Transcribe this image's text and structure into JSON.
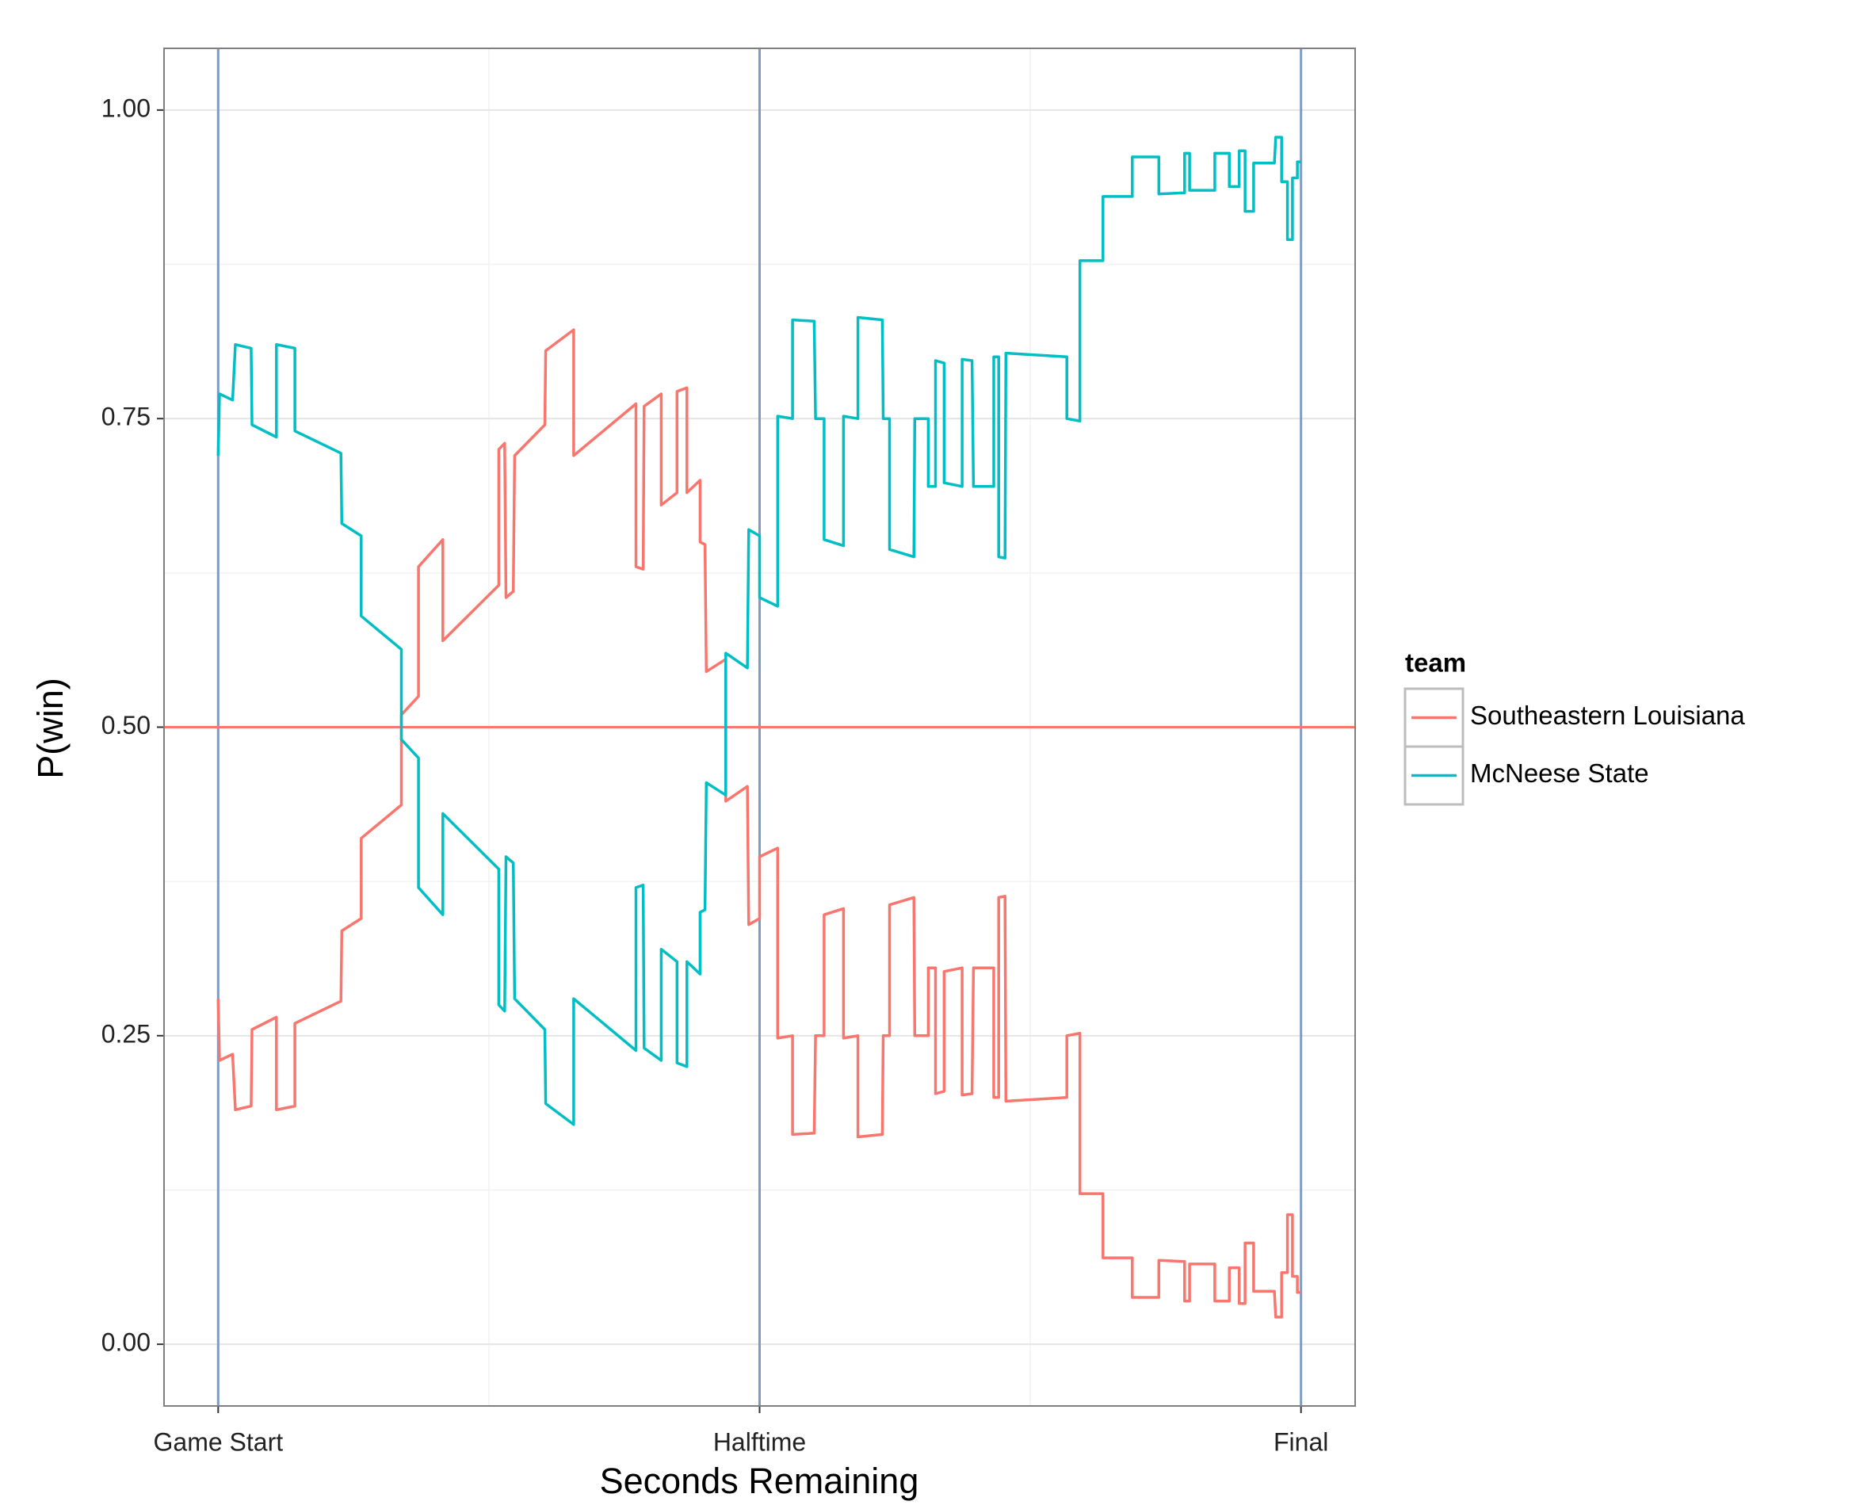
{
  "chart_data": {
    "type": "line",
    "x_label": "Seconds Remaining",
    "y_label": "P(win)",
    "legend_title": "team",
    "legend": "right",
    "grid": true,
    "xlim": [
      -120,
      2520
    ],
    "xticks": [
      {
        "value": 0,
        "label": "Game Start"
      },
      {
        "value": 1200,
        "label": "Halftime"
      },
      {
        "value": 2400,
        "label": "Final"
      }
    ],
    "ylim": [
      -0.05,
      1.05
    ],
    "yticks": [
      {
        "value": 0,
        "label": "0.00"
      },
      {
        "value": 0.25,
        "label": "0.25"
      },
      {
        "value": 0.5,
        "label": "0.50"
      },
      {
        "value": 0.75,
        "label": "0.75"
      },
      {
        "value": 1,
        "label": "1.00"
      }
    ],
    "vlines": [
      0,
      1200,
      2400
    ],
    "vline_color": "#7f9cc0",
    "hline": 0.5,
    "hline_color": "#f8766d",
    "x": [
      0,
      3,
      32,
      38,
      73,
      75,
      129,
      129,
      170,
      170,
      272,
      274,
      317,
      317,
      406,
      406,
      444,
      444,
      498,
      498,
      622,
      622,
      635,
      638,
      654,
      657,
      724,
      726,
      788,
      788,
      926,
      926,
      942,
      944,
      982,
      982,
      1017,
      1017,
      1039,
      1039,
      1068,
      1068,
      1079,
      1082,
      1125,
      1125,
      1173,
      1176,
      1200,
      1200,
      1240,
      1240,
      1273,
      1273,
      1321,
      1324,
      1343,
      1343,
      1386,
      1386,
      1418,
      1418,
      1472,
      1474,
      1488,
      1488,
      1542,
      1544,
      1574,
      1574,
      1590,
      1590,
      1609,
      1609,
      1649,
      1649,
      1671,
      1674,
      1719,
      1719,
      1730,
      1730,
      1744,
      1746,
      1881,
      1881,
      1910,
      1910,
      1961,
      1961,
      2026,
      2026,
      2085,
      2085,
      2142,
      2142,
      2153,
      2153,
      2209,
      2209,
      2241,
      2241,
      2263,
      2263,
      2276,
      2276,
      2295,
      2295,
      2341,
      2344,
      2357,
      2357,
      2370,
      2370,
      2381,
      2381,
      2392,
      2392,
      2400
    ],
    "series": [
      {
        "name": "Southeastern Louisiana",
        "color": "#f8766d",
        "values": [
          0.28,
          0.23,
          0.235,
          0.19,
          0.193,
          0.255,
          0.265,
          0.19,
          0.193,
          0.26,
          0.278,
          0.335,
          0.345,
          0.41,
          0.437,
          0.51,
          0.525,
          0.63,
          0.652,
          0.57,
          0.615,
          0.725,
          0.73,
          0.605,
          0.61,
          0.72,
          0.745,
          0.805,
          0.822,
          0.72,
          0.762,
          0.63,
          0.628,
          0.76,
          0.77,
          0.68,
          0.69,
          0.772,
          0.775,
          0.69,
          0.7,
          0.65,
          0.648,
          0.545,
          0.555,
          0.44,
          0.452,
          0.34,
          0.345,
          0.395,
          0.402,
          0.248,
          0.25,
          0.17,
          0.171,
          0.25,
          0.25,
          0.348,
          0.353,
          0.248,
          0.25,
          0.168,
          0.17,
          0.25,
          0.25,
          0.356,
          0.362,
          0.25,
          0.25,
          0.305,
          0.305,
          0.203,
          0.205,
          0.302,
          0.305,
          0.202,
          0.203,
          0.305,
          0.305,
          0.2,
          0.2,
          0.362,
          0.363,
          0.197,
          0.2,
          0.25,
          0.252,
          0.122,
          0.122,
          0.07,
          0.07,
          0.038,
          0.038,
          0.068,
          0.067,
          0.035,
          0.035,
          0.065,
          0.065,
          0.035,
          0.035,
          0.062,
          0.062,
          0.033,
          0.033,
          0.082,
          0.082,
          0.043,
          0.043,
          0.022,
          0.022,
          0.058,
          0.058,
          0.105,
          0.105,
          0.055,
          0.055,
          0.042,
          0.042
        ]
      },
      {
        "name": "McNeese State",
        "color": "#00bfc4",
        "values": [
          0.72,
          0.77,
          0.765,
          0.81,
          0.807,
          0.745,
          0.735,
          0.81,
          0.807,
          0.74,
          0.722,
          0.665,
          0.655,
          0.59,
          0.563,
          0.49,
          0.475,
          0.37,
          0.348,
          0.43,
          0.385,
          0.275,
          0.27,
          0.395,
          0.39,
          0.28,
          0.255,
          0.195,
          0.178,
          0.28,
          0.238,
          0.37,
          0.372,
          0.24,
          0.23,
          0.32,
          0.31,
          0.228,
          0.225,
          0.31,
          0.3,
          0.35,
          0.352,
          0.455,
          0.445,
          0.56,
          0.548,
          0.66,
          0.655,
          0.605,
          0.598,
          0.752,
          0.75,
          0.83,
          0.829,
          0.75,
          0.75,
          0.652,
          0.647,
          0.752,
          0.75,
          0.832,
          0.83,
          0.75,
          0.75,
          0.644,
          0.638,
          0.75,
          0.75,
          0.695,
          0.695,
          0.797,
          0.795,
          0.698,
          0.695,
          0.798,
          0.797,
          0.695,
          0.695,
          0.8,
          0.8,
          0.638,
          0.637,
          0.803,
          0.8,
          0.75,
          0.748,
          0.878,
          0.878,
          0.93,
          0.93,
          0.962,
          0.962,
          0.932,
          0.933,
          0.965,
          0.965,
          0.935,
          0.935,
          0.965,
          0.965,
          0.938,
          0.938,
          0.967,
          0.967,
          0.918,
          0.918,
          0.957,
          0.957,
          0.978,
          0.978,
          0.942,
          0.942,
          0.895,
          0.895,
          0.945,
          0.945,
          0.958,
          0.958
        ]
      }
    ]
  }
}
